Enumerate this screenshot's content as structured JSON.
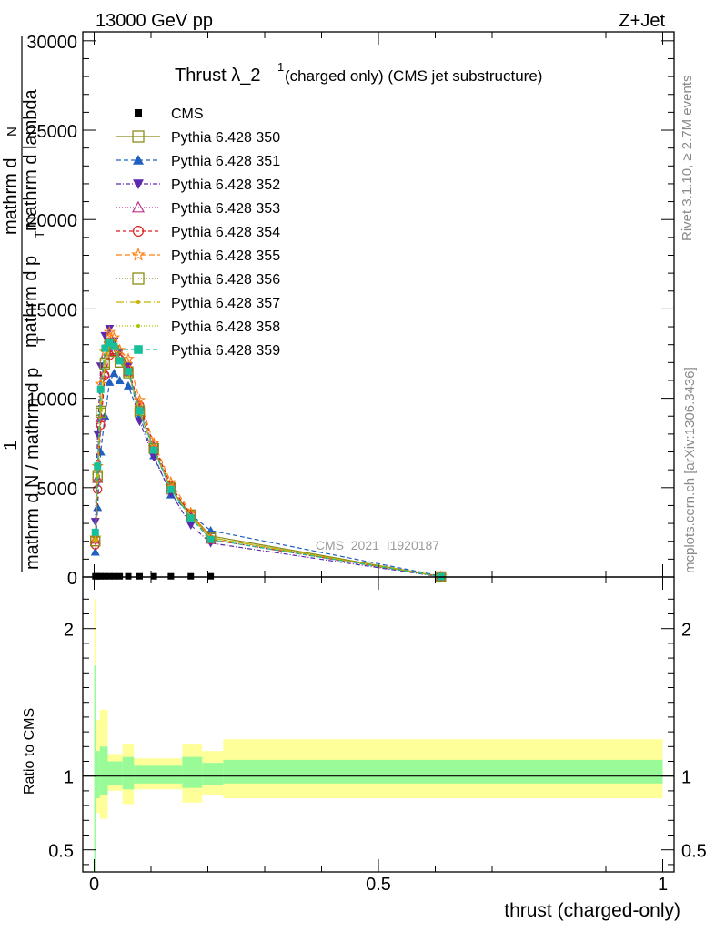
{
  "header": {
    "left": "13000 GeV pp",
    "right": "Z+Jet",
    "title_main": "Thrust λ_2",
    "title_sup": "1",
    "title_rest": " (charged only) (CMS jet substructure)"
  },
  "side": {
    "rivet": "Rivet 3.1.10, ≥ 2.7M events",
    "mcplots": "mcplots.cern.ch [arXiv:1306.3436]"
  },
  "watermark": "CMS_2021_I1920187",
  "ylabel_main": {
    "one": "1",
    "top_a": "mathrm d",
    "top_b": "N",
    "denom_a": "mathrm d p",
    "denom_b": "T",
    "denom_c": " mathrm d lambda",
    "bottom": "mathrm d N / mathrm d p",
    "bottom_sub": "T"
  },
  "ylabel_ratio": "Ratio to CMS",
  "xlabel": "thrust (charged-only)",
  "colors": {
    "band_stat": "#98fb98",
    "band_syst": "#ffff99"
  },
  "chart_data": {
    "type": "line",
    "main": {
      "xlim": [
        -0.02,
        1.02
      ],
      "ylim": [
        0,
        30500
      ],
      "yticks": [
        {
          "v": 0,
          "label": "0"
        },
        {
          "v": 5000,
          "label": "5000"
        },
        {
          "v": 10000,
          "label": "10000"
        },
        {
          "v": 15000,
          "label": "15000"
        },
        {
          "v": 20000,
          "label": "20000"
        },
        {
          "v": 25000,
          "label": "25000"
        },
        {
          "v": 30000,
          "label": "30000"
        }
      ]
    },
    "ratio": {
      "ylim": [
        0.35,
        2.35
      ],
      "yticks": [
        {
          "v": 0.5,
          "label": "0.5"
        },
        {
          "v": 1,
          "label": "1"
        },
        {
          "v": 2,
          "label": "2"
        }
      ]
    },
    "xticks": [
      {
        "v": 0,
        "label": "0"
      },
      {
        "v": 0.5,
        "label": "0.5"
      },
      {
        "v": 1,
        "label": "1"
      }
    ],
    "cms": {
      "name": "CMS",
      "x": [
        0.002,
        0.006,
        0.0115,
        0.019,
        0.027,
        0.035,
        0.045,
        0.06,
        0.08,
        0.105,
        0.135,
        0.17,
        0.205
      ],
      "y": [
        40,
        40,
        40,
        40,
        40,
        40,
        40,
        40,
        40,
        40,
        40,
        40,
        40
      ]
    },
    "ratio_bands": [
      {
        "x0": 0.0,
        "x1": 0.003,
        "stat": [
          0.35,
          1.75
        ],
        "syst": [
          0.35,
          2.2
        ]
      },
      {
        "x0": 0.003,
        "x1": 0.01,
        "stat": [
          0.85,
          1.17
        ],
        "syst": [
          0.75,
          1.38
        ]
      },
      {
        "x0": 0.01,
        "x1": 0.024,
        "stat": [
          0.87,
          1.2
        ],
        "syst": [
          0.71,
          1.45
        ]
      },
      {
        "x0": 0.024,
        "x1": 0.05,
        "stat": [
          0.94,
          1.1
        ],
        "syst": [
          0.9,
          1.15
        ]
      },
      {
        "x0": 0.05,
        "x1": 0.07,
        "stat": [
          0.91,
          1.13
        ],
        "syst": [
          0.81,
          1.22
        ]
      },
      {
        "x0": 0.07,
        "x1": 0.155,
        "stat": [
          0.95,
          1.07
        ],
        "syst": [
          0.91,
          1.12
        ]
      },
      {
        "x0": 0.155,
        "x1": 0.19,
        "stat": [
          0.92,
          1.13
        ],
        "syst": [
          0.82,
          1.22
        ]
      },
      {
        "x0": 0.19,
        "x1": 0.227,
        "stat": [
          0.94,
          1.09
        ],
        "syst": [
          0.87,
          1.17
        ]
      },
      {
        "x0": 0.227,
        "x1": 1.0,
        "stat": [
          0.95,
          1.11
        ],
        "syst": [
          0.85,
          1.25
        ]
      }
    ],
    "mc_x": [
      0.002,
      0.006,
      0.0115,
      0.019,
      0.027,
      0.035,
      0.045,
      0.06,
      0.08,
      0.105,
      0.135,
      0.17,
      0.205,
      0.61
    ],
    "series": [
      {
        "name": "Pythia 6.428 350",
        "color": "#8b8b1a",
        "marker": "square-open",
        "dash": "",
        "values": [
          2000,
          5700,
          9300,
          12000,
          13100,
          12700,
          12000,
          11500,
          9200,
          7200,
          4900,
          3500,
          2300,
          30
        ]
      },
      {
        "name": "Pythia 6.428 351",
        "color": "#1f5fbf",
        "marker": "triangle-up",
        "dash": "5,3",
        "values": [
          1400,
          3900,
          7000,
          9000,
          10900,
          11400,
          11000,
          10700,
          9000,
          6800,
          4600,
          3500,
          2600,
          50
        ]
      },
      {
        "name": "Pythia 6.428 352",
        "color": "#5a2ab0",
        "marker": "triangle-down",
        "dash": "5,2,1,2",
        "values": [
          3100,
          8000,
          11800,
          13500,
          13900,
          13200,
          12600,
          11800,
          8700,
          6700,
          4700,
          2900,
          1900,
          10
        ]
      },
      {
        "name": "Pythia 6.428 353",
        "color": "#c0308a",
        "marker": "triangle-open",
        "dash": "1,2",
        "values": [
          2100,
          5500,
          8900,
          11400,
          12600,
          12700,
          12300,
          11500,
          9500,
          7300,
          5000,
          3400,
          2100,
          20
        ]
      },
      {
        "name": "Pythia 6.428 354",
        "color": "#dd1c1c",
        "marker": "circle-open",
        "dash": "4,3",
        "values": [
          1800,
          4900,
          8500,
          11300,
          12400,
          12600,
          12200,
          11600,
          9600,
          7400,
          5100,
          3500,
          2100,
          20
        ]
      },
      {
        "name": "Pythia 6.428 355",
        "color": "#ff7f0e",
        "marker": "star-open",
        "dash": "6,3",
        "values": [
          2200,
          6200,
          10800,
          12600,
          13700,
          13400,
          12700,
          12200,
          9900,
          7500,
          5300,
          3600,
          2200,
          20
        ]
      },
      {
        "name": "Pythia 6.428 356",
        "color": "#8b8b1a",
        "marker": "square-open",
        "dash": "1,2",
        "values": [
          2000,
          5600,
          9200,
          11900,
          13000,
          12600,
          12000,
          11400,
          9300,
          7200,
          5000,
          3400,
          2200,
          20
        ]
      },
      {
        "name": "Pythia 6.428 357",
        "color": "#c8b400",
        "marker": "dot",
        "dash": "8,3,1,3",
        "values": [
          2100,
          5700,
          9300,
          12000,
          13000,
          12800,
          12100,
          11500,
          9200,
          7100,
          4900,
          3400,
          2200,
          20
        ]
      },
      {
        "name": "Pythia 6.428 358",
        "color": "#a8c400",
        "marker": "dot",
        "dash": "1,2",
        "values": [
          2000,
          5600,
          9400,
          12100,
          13100,
          12800,
          12100,
          11500,
          9300,
          7100,
          4900,
          3400,
          2200,
          20
        ]
      },
      {
        "name": "Pythia 6.428 359",
        "color": "#17bf9a",
        "marker": "square",
        "dash": "5,3",
        "values": [
          2500,
          6200,
          10500,
          12800,
          13100,
          12900,
          12100,
          11500,
          9300,
          7100,
          4900,
          3300,
          2100,
          20
        ]
      }
    ]
  }
}
